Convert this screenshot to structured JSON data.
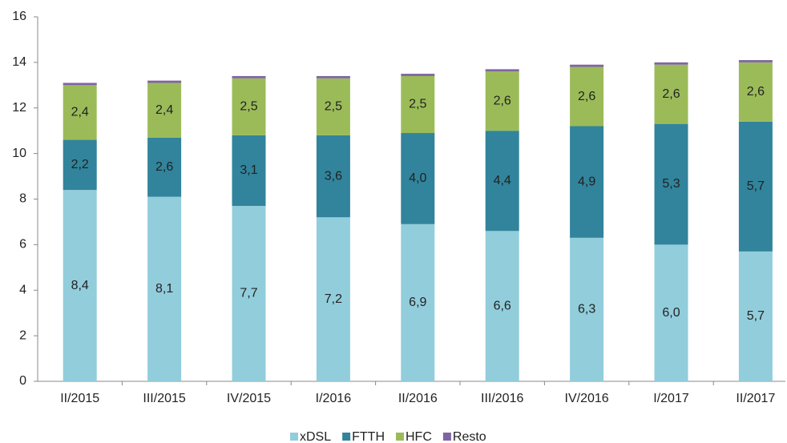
{
  "chart_data": {
    "type": "stacked_bar",
    "categories": [
      "II/2015",
      "III/2015",
      "IV/2015",
      "I/2016",
      "II/2016",
      "III/2016",
      "IV/2016",
      "I/2017",
      "II/2017"
    ],
    "series": [
      {
        "name": "xDSL",
        "color": "#92cddc",
        "values": [
          8.4,
          8.1,
          7.7,
          7.2,
          6.9,
          6.6,
          6.3,
          6.0,
          5.7
        ],
        "value_labels": [
          "8,4",
          "8,1",
          "7,7",
          "7,2",
          "6,9",
          "6,6",
          "6,3",
          "6,0",
          "5,7"
        ]
      },
      {
        "name": "FTTH",
        "color": "#31849b",
        "values": [
          2.2,
          2.6,
          3.1,
          3.6,
          4.0,
          4.4,
          4.9,
          5.3,
          5.7
        ],
        "value_labels": [
          "2,2",
          "2,6",
          "3,1",
          "3,6",
          "4,0",
          "4,4",
          "4,9",
          "5,3",
          "5,7"
        ]
      },
      {
        "name": "HFC",
        "color": "#9bbb59",
        "values": [
          2.4,
          2.4,
          2.5,
          2.5,
          2.5,
          2.6,
          2.6,
          2.6,
          2.6
        ],
        "value_labels": [
          "2,4",
          "2,4",
          "2,5",
          "2,5",
          "2,5",
          "2,6",
          "2,6",
          "2,6",
          "2,6"
        ]
      },
      {
        "name": "Resto",
        "color": "#8064a2",
        "values": [
          0.1,
          0.1,
          0.1,
          0.1,
          0.1,
          0.1,
          0.1,
          0.1,
          0.1
        ]
      }
    ],
    "ylim": [
      0,
      16
    ],
    "yticks": [
      0,
      2,
      4,
      6,
      8,
      10,
      12,
      14,
      16
    ],
    "grid": false,
    "legend": "bottom"
  }
}
